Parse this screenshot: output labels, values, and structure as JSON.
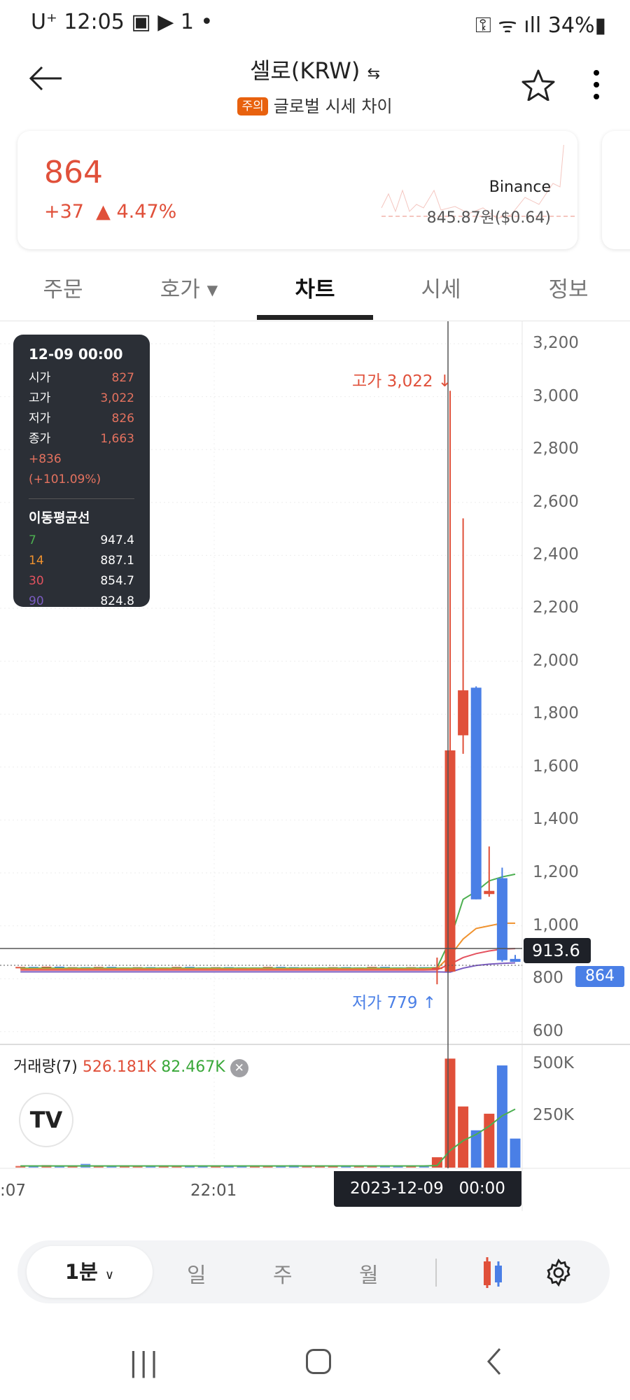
{
  "status": {
    "carrier": "U⁺",
    "time": "12:05",
    "battery": "34%"
  },
  "header": {
    "title": "셀로(KRW)",
    "swap_icon": "⇆",
    "badge": "주의",
    "subtitle": "글로벌 시세 차이"
  },
  "ticker": {
    "price": "864",
    "change": "+37",
    "change_pct": "▲ 4.47%",
    "exchange": "Binance",
    "global_price": "845.87원($0.64)",
    "color_up": "#e0503a"
  },
  "tabs": [
    {
      "label": "주문"
    },
    {
      "label": "호가 ▾"
    },
    {
      "label": "차트",
      "active": true
    },
    {
      "label": "시세"
    },
    {
      "label": "정보"
    }
  ],
  "tooltip": {
    "datetime": "12-09 00:00",
    "open_label": "시가",
    "open": "827",
    "high_label": "고가",
    "high": "3,022",
    "low_label": "저가",
    "low": "826",
    "close_label": "종가",
    "close": "1,663",
    "change": "+836 (+101.09%)",
    "ma_title": "이동평균선",
    "ma": [
      {
        "period": "7",
        "value": "947.4",
        "color": "#4caf50"
      },
      {
        "period": "14",
        "value": "887.1",
        "color": "#f0922e"
      },
      {
        "period": "30",
        "value": "854.7",
        "color": "#e4525f"
      },
      {
        "period": "90",
        "value": "824.8",
        "color": "#7a5cc0"
      }
    ]
  },
  "chart_labels": {
    "high_marker": "고가 3,022 ↓",
    "low_marker": "저가 779 ↑",
    "crosshair_price": "913.6",
    "current_price": "864",
    "crosshair_time": "2023-12-09   00:00",
    "time_labels": [
      ":07",
      "22:01"
    ],
    "volume_legend": "거래량(7)",
    "volume_value": "526.181K",
    "volume_ma_value": "82.467K"
  },
  "chart_data": {
    "type": "candlestick",
    "price_axis": {
      "ticks": [
        "3,200",
        "3,000",
        "2,800",
        "2,600",
        "2,400",
        "2,200",
        "2,000",
        "1,800",
        "1,600",
        "1,400",
        "1,200",
        "1,000",
        "800",
        "600"
      ],
      "ylim": [
        600,
        3200
      ]
    },
    "volume_axis": {
      "ticks": [
        "500K",
        "250K"
      ]
    },
    "colors": {
      "up": "#e0503a",
      "down": "#4a7fe6"
    },
    "history_close": [
      842,
      840,
      843,
      839,
      841,
      840,
      842,
      838,
      840,
      841,
      839,
      840,
      842,
      840,
      839,
      841,
      840,
      838,
      840,
      842,
      841,
      839,
      840,
      840,
      841,
      839,
      840,
      842,
      840,
      839,
      841,
      840
    ],
    "history_volume": [
      8,
      6,
      12,
      5,
      6,
      18,
      9,
      7,
      6,
      8,
      5,
      6,
      7,
      5,
      6,
      5,
      6,
      10,
      5,
      6,
      5,
      12,
      6,
      5,
      6,
      5,
      9,
      5,
      6,
      5,
      6,
      6
    ],
    "candles": [
      {
        "o": 838,
        "h": 880,
        "l": 779,
        "c": 842,
        "v": 50
      },
      {
        "o": 827,
        "h": 3022,
        "l": 826,
        "c": 1663,
        "v": 526
      },
      {
        "o": 1720,
        "h": 2540,
        "l": 1650,
        "c": 1890,
        "v": 295
      },
      {
        "o": 1900,
        "h": 1905,
        "l": 1100,
        "c": 1100,
        "v": 180
      },
      {
        "o": 1120,
        "h": 1300,
        "l": 1110,
        "c": 1132,
        "v": 260
      },
      {
        "o": 1180,
        "h": 1220,
        "l": 864,
        "c": 870,
        "v": 493
      },
      {
        "o": 875,
        "h": 890,
        "l": 864,
        "c": 864,
        "v": 140
      }
    ],
    "ma": [
      {
        "period": 7,
        "color": "#4caf50",
        "hist": 840,
        "values": [
          842,
          947,
          1100,
          1130,
          1170,
          1185,
          1195
        ]
      },
      {
        "period": 14,
        "color": "#f0922e",
        "hist": 837,
        "values": [
          838,
          887,
          950,
          990,
          1000,
          1010,
          1010
        ]
      },
      {
        "period": 30,
        "color": "#e4525f",
        "hist": 833,
        "values": [
          834,
          855,
          880,
          895,
          905,
          912,
          914
        ]
      },
      {
        "period": 90,
        "color": "#7a5cc0",
        "hist": 826,
        "values": [
          826,
          825,
          840,
          850,
          855,
          858,
          860
        ]
      }
    ],
    "volume_ma": [
      10,
      82,
      130,
      160,
      200,
      250,
      282
    ],
    "volume_unit": "K"
  },
  "toolbar": {
    "interval": "1분",
    "day": "일",
    "week": "주",
    "month": "월"
  }
}
